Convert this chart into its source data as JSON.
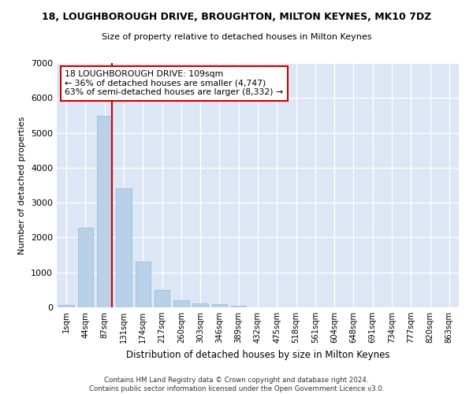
{
  "title": "18, LOUGHBOROUGH DRIVE, BROUGHTON, MILTON KEYNES, MK10 7DZ",
  "subtitle": "Size of property relative to detached houses in Milton Keynes",
  "xlabel": "Distribution of detached houses by size in Milton Keynes",
  "ylabel": "Number of detached properties",
  "footer_line1": "Contains HM Land Registry data © Crown copyright and database right 2024.",
  "footer_line2": "Contains public sector information licensed under the Open Government Licence v3.0.",
  "categories": [
    "1sqm",
    "44sqm",
    "87sqm",
    "131sqm",
    "174sqm",
    "217sqm",
    "260sqm",
    "303sqm",
    "346sqm",
    "389sqm",
    "432sqm",
    "475sqm",
    "518sqm",
    "561sqm",
    "604sqm",
    "648sqm",
    "691sqm",
    "734sqm",
    "777sqm",
    "820sqm",
    "863sqm"
  ],
  "values": [
    60,
    2280,
    5490,
    3420,
    1300,
    490,
    200,
    110,
    80,
    50,
    0,
    0,
    0,
    0,
    0,
    0,
    0,
    0,
    0,
    0,
    0
  ],
  "bar_color": "#b8d0e8",
  "bar_edge_color": "#90b8d8",
  "background_color": "#dce6f5",
  "grid_color": "#ffffff",
  "vline_color": "#cc0000",
  "vline_x_index": 2,
  "annotation_text": "18 LOUGHBOROUGH DRIVE: 109sqm\n← 36% of detached houses are smaller (4,747)\n63% of semi-detached houses are larger (8,332) →",
  "annotation_box_facecolor": "#ffffff",
  "annotation_box_edgecolor": "#cc0000",
  "ylim": [
    0,
    7000
  ],
  "yticks": [
    0,
    1000,
    2000,
    3000,
    4000,
    5000,
    6000,
    7000
  ]
}
